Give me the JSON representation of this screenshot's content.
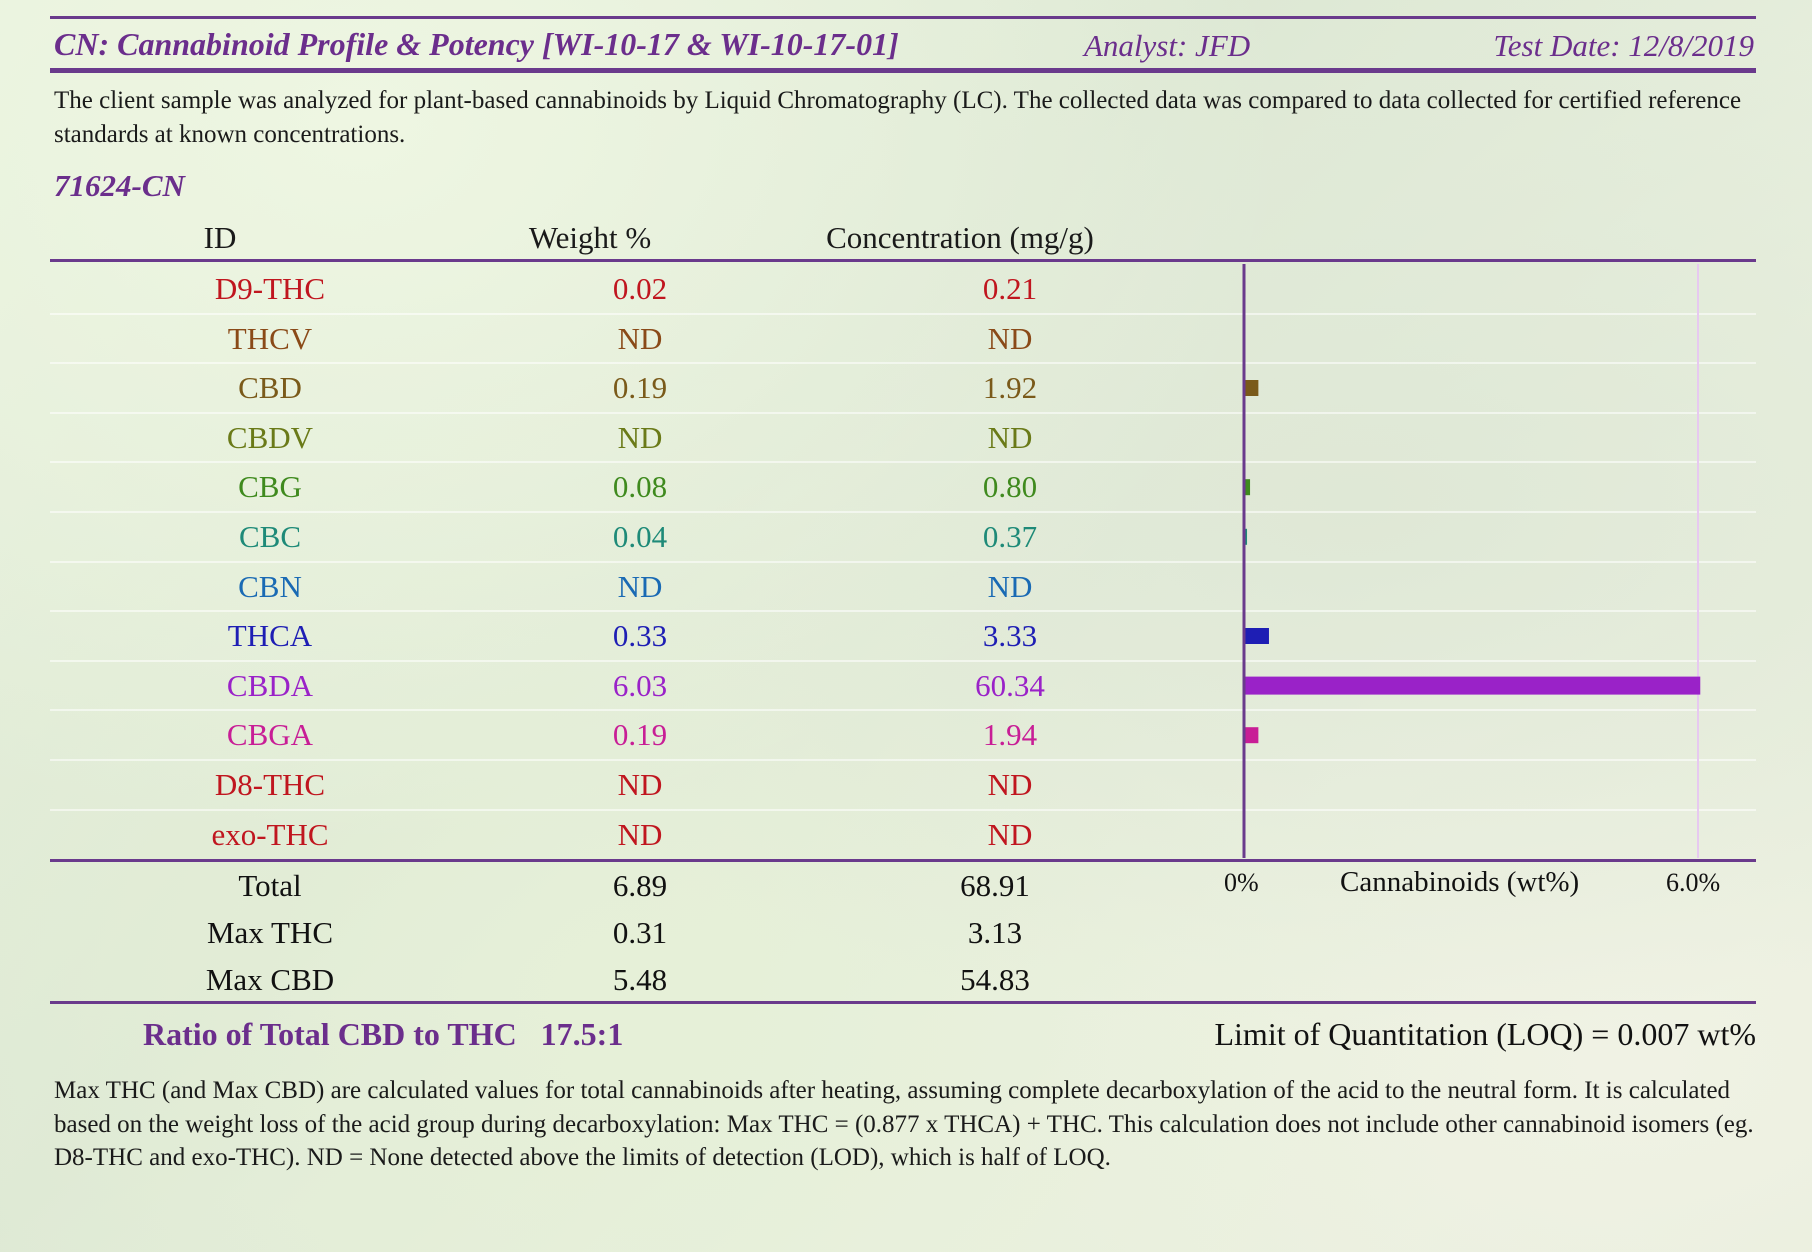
{
  "header": {
    "title": "CN: Cannabinoid Profile & Potency [WI-10-17 & WI-10-17-01]",
    "analyst": "Analyst: JFD",
    "test_date": "Test Date: 12/8/2019"
  },
  "intro": "The client sample was analyzed for plant-based cannabinoids by Liquid Chromatography (LC).  The collected data was compared to data collected for certified reference standards at known concentrations.",
  "sample_id": "71624-CN",
  "table": {
    "headers": {
      "id": "ID",
      "weight": "Weight %",
      "conc": "Concentration (mg/g)"
    },
    "rows": [
      {
        "id": "D9-THC",
        "weight": "0.02",
        "conc": "0.21",
        "color": "#c0161f"
      },
      {
        "id": "THCV",
        "weight": "ND",
        "conc": "ND",
        "color": "#8a4a18"
      },
      {
        "id": "CBD",
        "weight": "0.19",
        "conc": "1.92",
        "color": "#7a5a1a"
      },
      {
        "id": "CBDV",
        "weight": "ND",
        "conc": "ND",
        "color": "#6a7a18"
      },
      {
        "id": "CBG",
        "weight": "0.08",
        "conc": "0.80",
        "color": "#3f8a1e"
      },
      {
        "id": "CBC",
        "weight": "0.04",
        "conc": "0.37",
        "color": "#1e8a78"
      },
      {
        "id": "CBN",
        "weight": "ND",
        "conc": "ND",
        "color": "#1a6ab4"
      },
      {
        "id": "THCA",
        "weight": "0.33",
        "conc": "3.33",
        "color": "#1e1eb4"
      },
      {
        "id": "CBDA",
        "weight": "6.03",
        "conc": "60.34",
        "color": "#9a22c8"
      },
      {
        "id": "CBGA",
        "weight": "0.19",
        "conc": "1.94",
        "color": "#c81e96"
      },
      {
        "id": "D8-THC",
        "weight": "ND",
        "conc": "ND",
        "color": "#c0161f"
      },
      {
        "id": "exo-THC",
        "weight": "ND",
        "conc": "ND",
        "color": "#c0161f"
      }
    ]
  },
  "summary": [
    {
      "id": "Total",
      "weight": "6.89",
      "conc": "68.91"
    },
    {
      "id": "Max THC",
      "weight": "0.31",
      "conc": "3.13"
    },
    {
      "id": "Max CBD",
      "weight": "5.48",
      "conc": "54.83"
    }
  ],
  "chart_data": {
    "type": "bar",
    "orientation": "horizontal",
    "categories": [
      "D9-THC",
      "THCV",
      "CBD",
      "CBDV",
      "CBG",
      "CBC",
      "CBN",
      "THCA",
      "CBDA",
      "CBGA",
      "D8-THC",
      "exo-THC"
    ],
    "values": [
      0.02,
      0,
      0.19,
      0,
      0.08,
      0.04,
      0,
      0.33,
      6.03,
      0.19,
      0,
      0
    ],
    "colors": [
      "#c0161f",
      "#8a4a18",
      "#7a5a1a",
      "#6a7a18",
      "#3f8a1e",
      "#1e8a78",
      "#1a6ab4",
      "#1e1eb4",
      "#9a22c8",
      "#c81e96",
      "#c0161f",
      "#c0161f"
    ],
    "xlabel": "Cannabinoids (wt%)",
    "xlim": [
      0,
      6.0
    ],
    "xmin_label": "0%",
    "xmax_label": "6.0%"
  },
  "ratio": "Ratio of Total CBD to THC   17.5:1",
  "loq": "Limit of Quantitation (LOQ) = 0.007 wt%",
  "footnote": "Max THC (and Max CBD) are calculated values for total cannabinoids after heating, assuming complete decarboxylation of the acid to the neutral form. It is calculated based on the weight loss of the acid group during decarboxylation:   Max THC = (0.877 x THCA) + THC.  This calculation does not include other cannabinoid isomers (eg. D8-THC and exo-THC).  ND = None detected above the limits of detection (LOD), which is half of LOQ."
}
